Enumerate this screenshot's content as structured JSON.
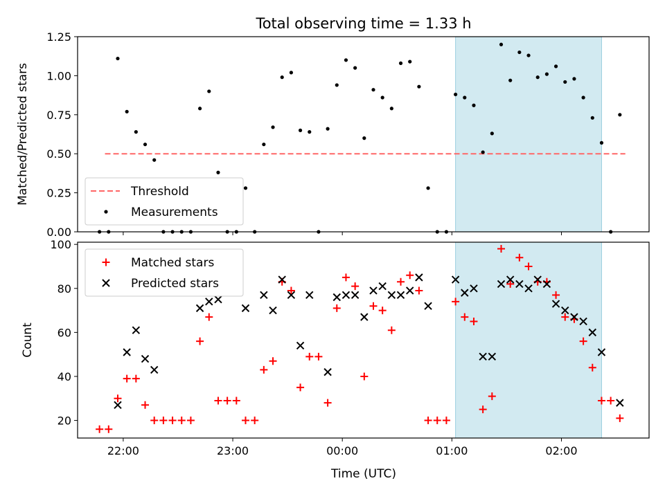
{
  "figure": {
    "title": "Total observing time = 1.33 h",
    "xlabel": "Time (UTC)",
    "x_ticks": [
      "22:00",
      "23:00",
      "00:00",
      "01:00",
      "02:00"
    ],
    "x_range": [
      "21:35",
      "02:48"
    ],
    "highlight_span": [
      "01:02",
      "02:22"
    ],
    "highlight_color": "#add8e6"
  },
  "chart_data": [
    {
      "type": "scatter",
      "ylabel": "Matched/Predicted stars",
      "ylim": [
        0,
        1.25
      ],
      "y_ticks": [
        "0.00",
        "0.25",
        "0.50",
        "0.75",
        "1.00",
        "1.25"
      ],
      "legend_position": "lower-left",
      "threshold": {
        "name": "Threshold",
        "value": 0.5,
        "x": [
          "21:50",
          "02:35"
        ],
        "color": "#ff6666",
        "style": "dashed"
      },
      "series": [
        {
          "name": "Measurements",
          "color": "#000000",
          "points": [
            [
              "21:47",
              0.0
            ],
            [
              "21:52",
              0.0
            ],
            [
              "21:57",
              1.11
            ],
            [
              "22:02",
              0.77
            ],
            [
              "22:07",
              0.64
            ],
            [
              "22:12",
              0.56
            ],
            [
              "22:17",
              0.46
            ],
            [
              "22:22",
              0.0
            ],
            [
              "22:27",
              0.0
            ],
            [
              "22:32",
              0.0
            ],
            [
              "22:37",
              0.0
            ],
            [
              "22:42",
              0.79
            ],
            [
              "22:47",
              0.9
            ],
            [
              "22:52",
              0.38
            ],
            [
              "22:57",
              0.0
            ],
            [
              "23:02",
              0.0
            ],
            [
              "23:07",
              0.28
            ],
            [
              "23:12",
              0.0
            ],
            [
              "23:17",
              0.56
            ],
            [
              "23:22",
              0.67
            ],
            [
              "23:27",
              0.99
            ],
            [
              "23:32",
              1.02
            ],
            [
              "23:37",
              0.65
            ],
            [
              "23:42",
              0.64
            ],
            [
              "23:47",
              0.0
            ],
            [
              "23:52",
              0.66
            ],
            [
              "23:57",
              0.94
            ],
            [
              "00:02",
              1.1
            ],
            [
              "00:07",
              1.05
            ],
            [
              "00:12",
              0.6
            ],
            [
              "00:17",
              0.91
            ],
            [
              "00:22",
              0.86
            ],
            [
              "00:27",
              0.79
            ],
            [
              "00:32",
              1.08
            ],
            [
              "00:37",
              1.09
            ],
            [
              "00:42",
              0.93
            ],
            [
              "00:47",
              0.28
            ],
            [
              "00:52",
              0.0
            ],
            [
              "00:57",
              0.0
            ],
            [
              "01:02",
              0.88
            ],
            [
              "01:07",
              0.86
            ],
            [
              "01:12",
              0.81
            ],
            [
              "01:17",
              0.51
            ],
            [
              "01:22",
              0.63
            ],
            [
              "01:27",
              1.2
            ],
            [
              "01:32",
              0.97
            ],
            [
              "01:37",
              1.15
            ],
            [
              "01:42",
              1.13
            ],
            [
              "01:47",
              0.99
            ],
            [
              "01:52",
              1.01
            ],
            [
              "01:57",
              1.06
            ],
            [
              "02:02",
              0.96
            ],
            [
              "02:07",
              0.98
            ],
            [
              "02:12",
              0.86
            ],
            [
              "02:17",
              0.73
            ],
            [
              "02:22",
              0.57
            ],
            [
              "02:27",
              0.0
            ],
            [
              "02:32",
              0.75
            ]
          ]
        }
      ]
    },
    {
      "type": "scatter",
      "ylabel": "Count",
      "ylim": [
        12,
        101
      ],
      "y_ticks": [
        "20",
        "40",
        "60",
        "80",
        "100"
      ],
      "legend_position": "top-left",
      "series": [
        {
          "name": "Matched stars",
          "color": "#ff0000",
          "marker": "+",
          "points": [
            [
              "21:47",
              16
            ],
            [
              "21:52",
              16
            ],
            [
              "21:57",
              30
            ],
            [
              "22:02",
              39
            ],
            [
              "22:07",
              39
            ],
            [
              "22:12",
              27
            ],
            [
              "22:17",
              20
            ],
            [
              "22:22",
              20
            ],
            [
              "22:27",
              20
            ],
            [
              "22:32",
              20
            ],
            [
              "22:37",
              20
            ],
            [
              "22:42",
              56
            ],
            [
              "22:47",
              67
            ],
            [
              "22:52",
              29
            ],
            [
              "22:57",
              29
            ],
            [
              "23:02",
              29
            ],
            [
              "23:07",
              20
            ],
            [
              "23:12",
              20
            ],
            [
              "23:17",
              43
            ],
            [
              "23:22",
              47
            ],
            [
              "23:27",
              83
            ],
            [
              "23:32",
              79
            ],
            [
              "23:37",
              35
            ],
            [
              "23:42",
              49
            ],
            [
              "23:47",
              49
            ],
            [
              "23:52",
              28
            ],
            [
              "23:57",
              71
            ],
            [
              "00:02",
              85
            ],
            [
              "00:07",
              81
            ],
            [
              "00:12",
              40
            ],
            [
              "00:17",
              72
            ],
            [
              "00:22",
              70
            ],
            [
              "00:27",
              61
            ],
            [
              "00:32",
              83
            ],
            [
              "00:37",
              86
            ],
            [
              "00:42",
              79
            ],
            [
              "00:47",
              20
            ],
            [
              "00:52",
              20
            ],
            [
              "00:57",
              20
            ],
            [
              "01:02",
              74
            ],
            [
              "01:07",
              67
            ],
            [
              "01:12",
              65
            ],
            [
              "01:17",
              25
            ],
            [
              "01:22",
              31
            ],
            [
              "01:27",
              98
            ],
            [
              "01:32",
              82
            ],
            [
              "01:37",
              94
            ],
            [
              "01:42",
              90
            ],
            [
              "01:47",
              83
            ],
            [
              "01:52",
              83
            ],
            [
              "01:57",
              77
            ],
            [
              "02:02",
              67
            ],
            [
              "02:07",
              66
            ],
            [
              "02:12",
              56
            ],
            [
              "02:17",
              44
            ],
            [
              "02:22",
              29
            ],
            [
              "02:27",
              29
            ],
            [
              "02:32",
              21
            ]
          ]
        },
        {
          "name": "Predicted stars",
          "color": "#000000",
          "marker": "x",
          "points": [
            [
              "21:57",
              27
            ],
            [
              "22:02",
              51
            ],
            [
              "22:07",
              61
            ],
            [
              "22:12",
              48
            ],
            [
              "22:17",
              43
            ],
            [
              "22:42",
              71
            ],
            [
              "22:47",
              74
            ],
            [
              "22:52",
              75
            ],
            [
              "23:07",
              71
            ],
            [
              "23:17",
              77
            ],
            [
              "23:22",
              70
            ],
            [
              "23:27",
              84
            ],
            [
              "23:32",
              77
            ],
            [
              "23:37",
              54
            ],
            [
              "23:42",
              77
            ],
            [
              "23:52",
              42
            ],
            [
              "23:57",
              76
            ],
            [
              "00:02",
              77
            ],
            [
              "00:07",
              77
            ],
            [
              "00:12",
              67
            ],
            [
              "00:17",
              79
            ],
            [
              "00:22",
              81
            ],
            [
              "00:27",
              77
            ],
            [
              "00:32",
              77
            ],
            [
              "00:37",
              79
            ],
            [
              "00:42",
              85
            ],
            [
              "00:47",
              72
            ],
            [
              "01:02",
              84
            ],
            [
              "01:07",
              78
            ],
            [
              "01:12",
              80
            ],
            [
              "01:17",
              49
            ],
            [
              "01:22",
              49
            ],
            [
              "01:27",
              82
            ],
            [
              "01:32",
              84
            ],
            [
              "01:37",
              82
            ],
            [
              "01:42",
              80
            ],
            [
              "01:47",
              84
            ],
            [
              "01:52",
              82
            ],
            [
              "01:57",
              73
            ],
            [
              "02:02",
              70
            ],
            [
              "02:07",
              67
            ],
            [
              "02:12",
              65
            ],
            [
              "02:17",
              60
            ],
            [
              "02:22",
              51
            ],
            [
              "02:32",
              28
            ]
          ]
        }
      ]
    }
  ]
}
